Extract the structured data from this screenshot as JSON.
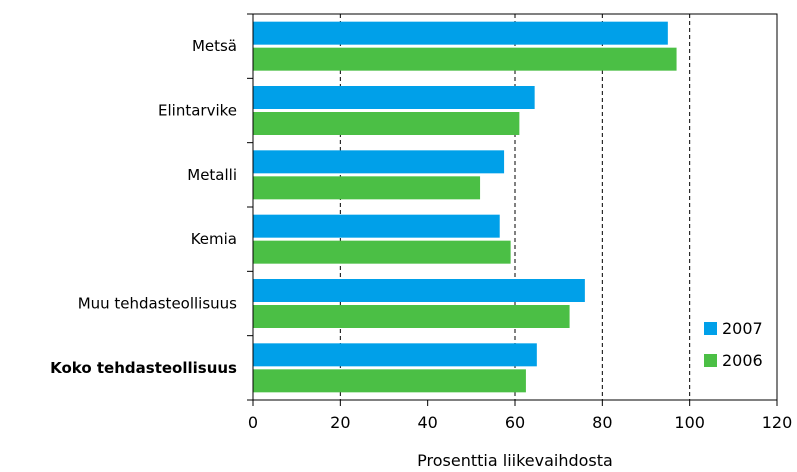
{
  "chart_data": {
    "type": "bar",
    "orientation": "horizontal",
    "categories": [
      "Metsä",
      "Elintarvike",
      "Metalli",
      "Kemia",
      "Muu tehdasteollisuus",
      "Koko tehdasteollisuus"
    ],
    "bold_categories": [
      "Koko tehdasteollisuus"
    ],
    "series": [
      {
        "name": "2007",
        "color": "#00a0e9",
        "values": [
          95,
          64.5,
          57.5,
          56.5,
          76,
          65
        ]
      },
      {
        "name": "2006",
        "color": "#4bbf45",
        "values": [
          97,
          61,
          52,
          59,
          72.5,
          62.5
        ]
      }
    ],
    "xlabel": "Prosenttia liikevaihdosta",
    "ylabel": "",
    "xlim": [
      0,
      120
    ],
    "xticks": [
      "0",
      "20",
      "40",
      "60",
      "80",
      "100",
      "120"
    ],
    "gridlines": {
      "style": "dashed",
      "x": [
        20,
        60,
        80,
        100
      ]
    },
    "legend": {
      "position": "bottom-right inside plot"
    }
  }
}
